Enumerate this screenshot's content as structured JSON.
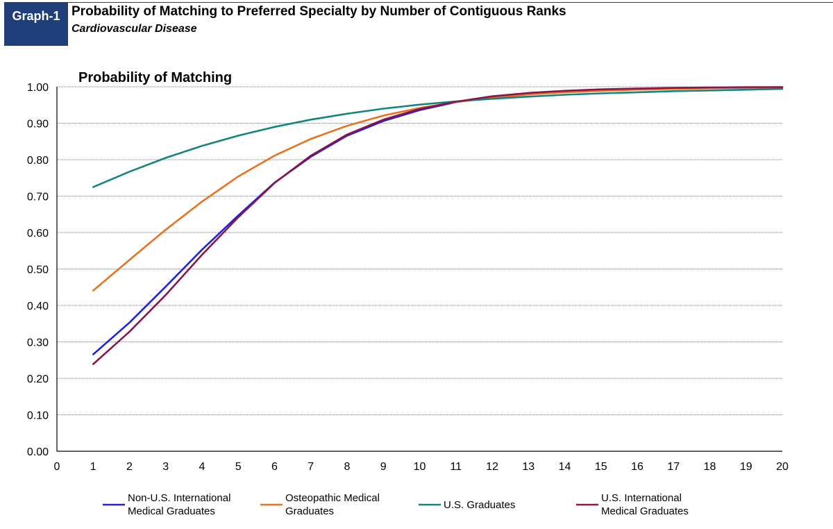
{
  "header": {
    "badge": "Graph-1",
    "title": "Probability of Matching to Preferred Specialty by Number of Contiguous Ranks",
    "subtitle": "Cardiovascular Disease"
  },
  "chart_data": {
    "type": "line",
    "ylabel": "Probability of Matching",
    "xlabel": "",
    "xlim": [
      0,
      20
    ],
    "ylim": [
      0,
      1
    ],
    "x_ticks": [
      0,
      1,
      2,
      3,
      4,
      5,
      6,
      7,
      8,
      9,
      10,
      11,
      12,
      13,
      14,
      15,
      16,
      17,
      18,
      19,
      20
    ],
    "y_ticks": [
      "0.00",
      "0.10",
      "0.20",
      "0.30",
      "0.40",
      "0.50",
      "0.60",
      "0.70",
      "0.80",
      "0.90",
      "1.00"
    ],
    "grid": "horizontal",
    "legend_position": "bottom",
    "x": [
      1,
      2,
      3,
      4,
      5,
      6,
      7,
      8,
      9,
      10,
      11,
      12,
      13,
      14,
      15,
      16,
      17,
      18,
      19,
      20
    ],
    "series": [
      {
        "name_lines": [
          "Non-U.S. International",
          "Medical Graduates"
        ],
        "color": "#1f1fe6",
        "values": [
          0.266,
          0.353,
          0.452,
          0.553,
          0.647,
          0.737,
          0.808,
          0.866,
          0.906,
          0.936,
          0.958,
          0.973,
          0.982,
          0.988,
          0.992,
          0.994,
          0.996,
          0.997,
          0.998,
          0.999
        ]
      },
      {
        "name_lines": [
          "Osteopathic Medical",
          "Graduates"
        ],
        "color": "#e8701e",
        "values": [
          0.441,
          0.525,
          0.608,
          0.685,
          0.754,
          0.811,
          0.857,
          0.893,
          0.921,
          0.942,
          0.958,
          0.97,
          0.979,
          0.985,
          0.989,
          0.992,
          0.994,
          0.996,
          0.997,
          0.998
        ]
      },
      {
        "name_lines": [
          "U.S. Graduates"
        ],
        "color": "#14847e",
        "values": [
          0.725,
          0.767,
          0.805,
          0.838,
          0.866,
          0.89,
          0.91,
          0.926,
          0.94,
          0.951,
          0.96,
          0.967,
          0.973,
          0.978,
          0.982,
          0.985,
          0.988,
          0.99,
          0.992,
          0.994
        ]
      },
      {
        "name_lines": [
          "U.S. International",
          "Medical Graduates"
        ],
        "color": "#8a1548",
        "values": [
          0.239,
          0.328,
          0.429,
          0.539,
          0.642,
          0.736,
          0.811,
          0.869,
          0.91,
          0.939,
          0.959,
          0.974,
          0.983,
          0.989,
          0.993,
          0.995,
          0.997,
          0.998,
          0.999,
          0.999
        ]
      }
    ]
  }
}
